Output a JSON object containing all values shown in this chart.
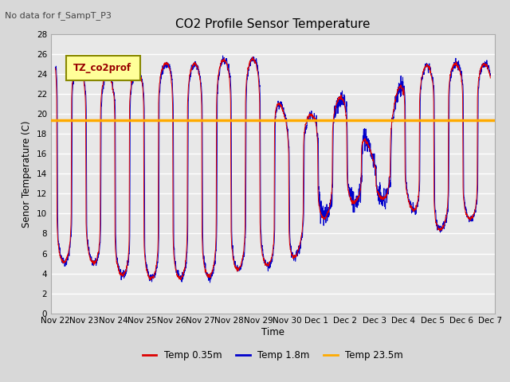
{
  "title": "CO2 Profile Sensor Temperature",
  "no_data_text": "No data for f_SampT_P3",
  "ylabel": "Senor Temperature (C)",
  "xlabel": "Time",
  "ylim": [
    0,
    28
  ],
  "yticks": [
    0,
    2,
    4,
    6,
    8,
    10,
    12,
    14,
    16,
    18,
    20,
    22,
    24,
    26,
    28
  ],
  "bg_color": "#e8e8e8",
  "grid_color": "#ffffff",
  "line_color_red": "#dd0000",
  "line_color_blue": "#0000cc",
  "line_color_orange": "#ffaa00",
  "constant_temp": 19.4,
  "legend_box_color": "#ffff99",
  "legend_box_edge": "#888800",
  "legend_box_text": "TZ_co2prof",
  "xtick_labels": [
    "Nov 22",
    "Nov 23",
    "Nov 24",
    "Nov 25",
    "Nov 26",
    "Nov 27",
    "Nov 28",
    "Nov 29",
    "Nov 30",
    "Dec 1",
    "Dec 2",
    "Dec 3",
    "Dec 4",
    "Dec 5",
    "Dec 6",
    "Dec 7"
  ],
  "figsize": [
    6.4,
    4.8
  ],
  "dpi": 100
}
